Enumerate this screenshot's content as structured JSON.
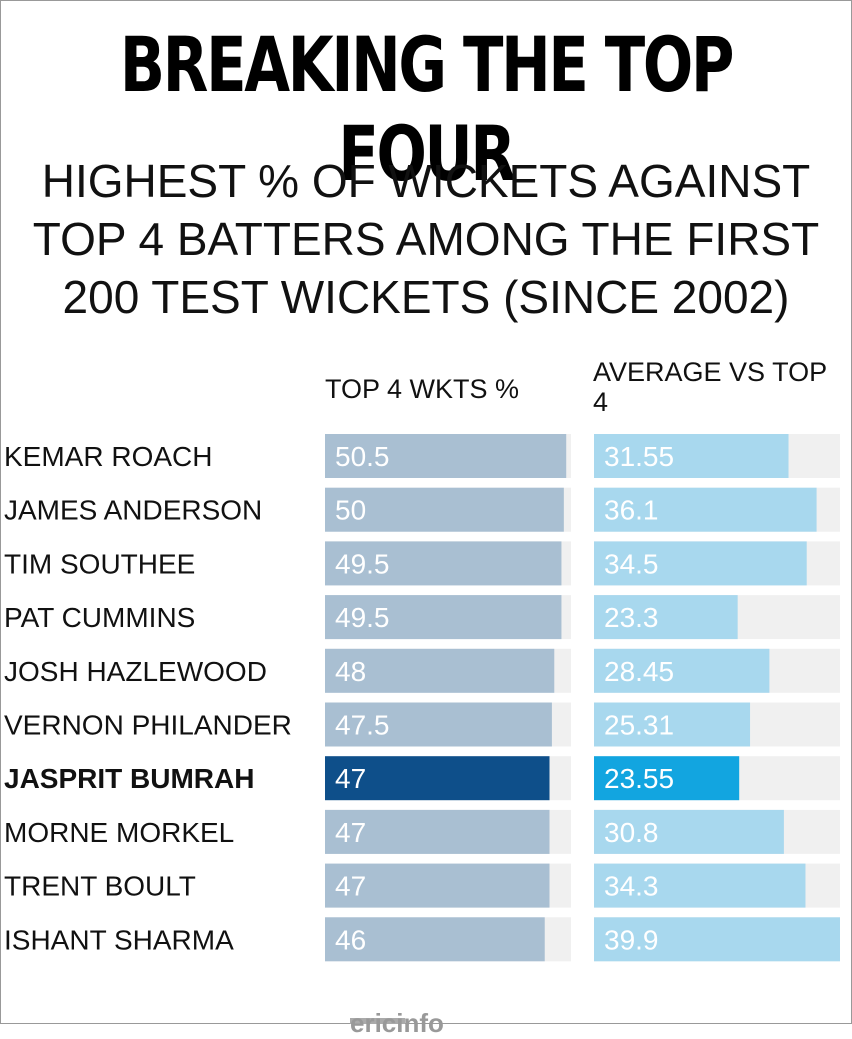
{
  "title": "BREAKING THE TOP FOUR",
  "subtitle_lines": [
    "HIGHEST % OF WICKETS AGAINST",
    "TOP 4 BATTERS AMONG THE FIRST",
    "200 TEST WICKETS (SINCE 2002)"
  ],
  "columns": {
    "left": "TOP 4 WKTS %",
    "right": "AVERAGE VS TOP 4"
  },
  "watermark": "ericinfo",
  "colors": {
    "left_bar": "#a9bfd2",
    "right_bar": "#a8d8ee",
    "highlight_left": "#0e4f8a",
    "highlight_right": "#12a5e0",
    "track": "#f0f0f0"
  },
  "chart_data": {
    "type": "bar",
    "categories": [
      "KEMAR ROACH",
      "JAMES ANDERSON",
      "TIM SOUTHEE",
      "PAT CUMMINS",
      "JOSH HAZLEWOOD",
      "VERNON PHILANDER",
      "JASPRIT BUMRAH",
      "MORNE MORKEL",
      "TRENT BOULT",
      "ISHANT SHARMA"
    ],
    "highlight": "JASPRIT BUMRAH",
    "series": [
      {
        "name": "TOP 4 WKTS %",
        "values": [
          50.5,
          50,
          49.5,
          49.5,
          48,
          47.5,
          47,
          47,
          47,
          46
        ],
        "labels": [
          "50.5",
          "50",
          "49.5",
          "49.5",
          "48",
          "47.5",
          "47",
          "47",
          "47",
          "46"
        ],
        "max": 51.5
      },
      {
        "name": "AVERAGE VS TOP 4",
        "values": [
          31.55,
          36.1,
          34.5,
          23.3,
          28.45,
          25.31,
          23.55,
          30.8,
          34.3,
          39.9
        ],
        "labels": [
          "31.55",
          "36.1",
          "34.5",
          "23.3",
          "28.45",
          "25.31",
          "23.55",
          "30.8",
          "34.3",
          "39.9"
        ],
        "max": 39.9
      }
    ]
  }
}
